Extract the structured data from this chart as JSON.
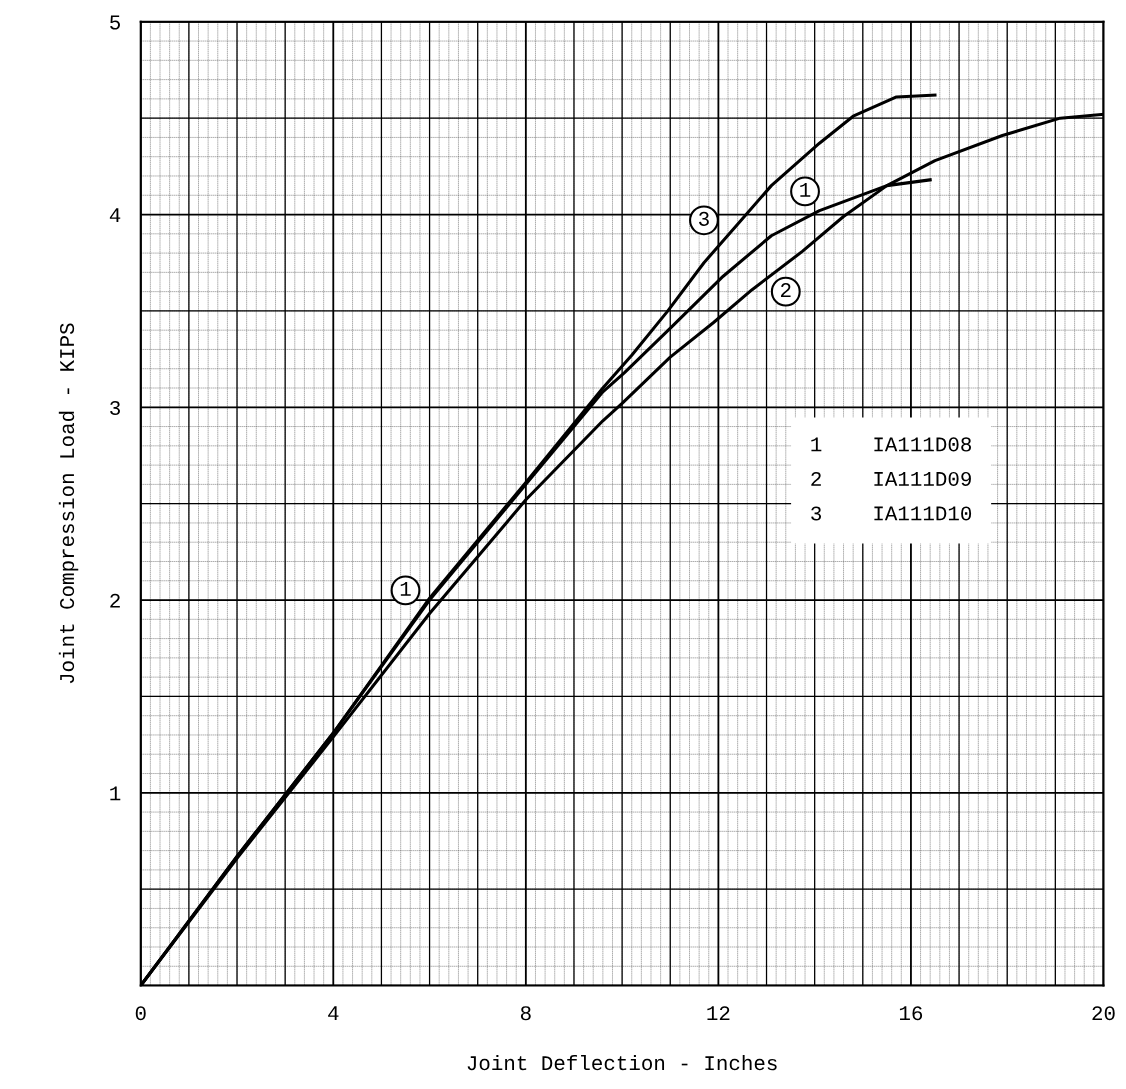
{
  "chart_data": {
    "type": "line",
    "xlabel": "Joint Deflection - Inches",
    "ylabel": "Joint Compression Load - KIPS",
    "xlim": [
      0,
      20
    ],
    "ylim": [
      0,
      5
    ],
    "xticks": [
      0,
      4,
      8,
      12,
      16,
      20
    ],
    "yticks": [
      {
        "value": 0,
        "label": null
      },
      1,
      2,
      3,
      4,
      5
    ],
    "grid": true,
    "marker": "none",
    "line_style": "solid",
    "series": [
      {
        "color": "#000000",
        "x": [
          0,
          2,
          4,
          6,
          8,
          9.6,
          10.05,
          11.04,
          12.1,
          13.1,
          14.1,
          15.5,
          16.4
        ],
        "values": [
          0,
          0.67,
          1.31,
          2.0,
          2.6,
          3.08,
          3.18,
          3.42,
          3.68,
          3.89,
          4.02,
          4.15,
          4.18
        ]
      },
      {
        "color": "#000000",
        "x": [
          0,
          2,
          4,
          6,
          8,
          9.6,
          10,
          11,
          11.9,
          12.7,
          13.75,
          14.6,
          15.5,
          16.5,
          17.9,
          19.1,
          20
        ],
        "values": [
          0,
          0.66,
          1.29,
          1.93,
          2.52,
          2.93,
          3.02,
          3.26,
          3.44,
          3.61,
          3.81,
          3.99,
          4.15,
          4.28,
          4.41,
          4.5,
          4.52
        ]
      },
      {
        "color": "#000000",
        "x": [
          0,
          2,
          4,
          6,
          8,
          9.6,
          10.2,
          10.95,
          11.7,
          12.4,
          13.1,
          14.1,
          14.8,
          15.7,
          16.5
        ],
        "values": [
          0,
          0.67,
          1.31,
          2.01,
          2.61,
          3.1,
          3.27,
          3.5,
          3.75,
          3.95,
          4.15,
          4.37,
          4.51,
          4.61,
          4.62
        ]
      }
    ],
    "annotations": [
      {
        "text": "1",
        "x": 5.5,
        "y": 2.05
      },
      {
        "text": "1",
        "x": 13.8,
        "y": 4.12
      },
      {
        "text": "2",
        "x": 13.4,
        "y": 3.6
      },
      {
        "text": "3",
        "x": 11.7,
        "y": 3.97
      },
      "1    IA111D08",
      "2    IA111D09",
      "3    IA111D10"
    ]
  }
}
